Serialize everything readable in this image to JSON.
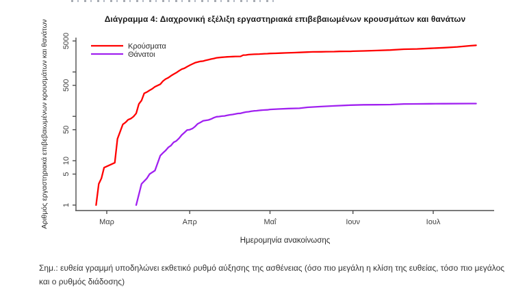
{
  "chart": {
    "title": "Διάγραμμα 4: Διαχρονική εξέλιξη εργαστηριακά επιβεβαιωμένων κρουσμάτων και θανάτων",
    "note": "Σημ.: ευθεία γραμμή υποδηλώνει εκθετικό ρυθμό αύξησης της ασθένειας (όσο πιο μεγάλη η κλίση της ευθείας, τόσο πιο μεγάλος και ο ρυθμός διάδοσης)"
  },
  "chart_data": {
    "type": "line",
    "title": "Διάγραμμα 4: Διαχρονική εξέλιξη εργαστηριακά επιβεβαιωμένων κρουσμάτων και θανάτων",
    "xlabel": "Ημερομηνία ανακοίνωσης",
    "ylabel": "Αριθμός εργαστηριακά επιβεβαιωμένων κρουσμάτων και θανάτων",
    "y_scale": "log",
    "ylim": [
      1,
      5000
    ],
    "y_axis": {
      "labeled_ticks": [
        1,
        5,
        10,
        50,
        500,
        5000
      ],
      "minor_ticks": [
        100,
        1000
      ]
    },
    "x_axis": {
      "note": "days counted from first data point (26 Feb 2020)",
      "ticks": [
        {
          "day": 4,
          "label": "Μαρ"
        },
        {
          "day": 35,
          "label": "Απρ"
        },
        {
          "day": 65,
          "label": "Μαΐ"
        },
        {
          "day": 96,
          "label": "Ιουν"
        },
        {
          "day": 126,
          "label": "Ιουλ"
        }
      ]
    },
    "legend": {
      "position": "top-left",
      "entries": [
        {
          "label": "Κρούσματα",
          "color": "#FF0000"
        },
        {
          "label": "Θάνατοι",
          "color": "#A020F0"
        }
      ]
    },
    "grid": false,
    "series": [
      {
        "name": "Κρούσματα",
        "color": "#FF0000",
        "points": [
          [
            0,
            1
          ],
          [
            1,
            3
          ],
          [
            2,
            4
          ],
          [
            3,
            7
          ],
          [
            7,
            9
          ],
          [
            8,
            31
          ],
          [
            9,
            45
          ],
          [
            10,
            66
          ],
          [
            11,
            73
          ],
          [
            12,
            84
          ],
          [
            13,
            89
          ],
          [
            14,
            99
          ],
          [
            15,
            117
          ],
          [
            16,
            190
          ],
          [
            17,
            228
          ],
          [
            18,
            331
          ],
          [
            19,
            352
          ],
          [
            20,
            387
          ],
          [
            21,
            418
          ],
          [
            22,
            464
          ],
          [
            23,
            495
          ],
          [
            24,
            530
          ],
          [
            25,
            624
          ],
          [
            26,
            695
          ],
          [
            27,
            743
          ],
          [
            28,
            821
          ],
          [
            29,
            892
          ],
          [
            30,
            966
          ],
          [
            31,
            1061
          ],
          [
            32,
            1156
          ],
          [
            33,
            1212
          ],
          [
            34,
            1314
          ],
          [
            35,
            1415
          ],
          [
            36,
            1514
          ],
          [
            37,
            1613
          ],
          [
            38,
            1673
          ],
          [
            39,
            1735
          ],
          [
            40,
            1755
          ],
          [
            41,
            1832
          ],
          [
            42,
            1884
          ],
          [
            43,
            1955
          ],
          [
            44,
            2011
          ],
          [
            45,
            2081
          ],
          [
            46,
            2114
          ],
          [
            47,
            2145
          ],
          [
            48,
            2170
          ],
          [
            49,
            2192
          ],
          [
            50,
            2207
          ],
          [
            51,
            2224
          ],
          [
            52,
            2235
          ],
          [
            54,
            2245
          ],
          [
            55,
            2401
          ],
          [
            56,
            2408
          ],
          [
            57,
            2463
          ],
          [
            58,
            2490
          ],
          [
            59,
            2506
          ],
          [
            61,
            2534
          ],
          [
            63,
            2576
          ],
          [
            64,
            2591
          ],
          [
            65,
            2612
          ],
          [
            67,
            2632
          ],
          [
            69,
            2663
          ],
          [
            71,
            2691
          ],
          [
            74,
            2726
          ],
          [
            76,
            2760
          ],
          [
            79,
            2810
          ],
          [
            81,
            2834
          ],
          [
            84,
            2850
          ],
          [
            86,
            2873
          ],
          [
            89,
            2882
          ],
          [
            91,
            2906
          ],
          [
            93,
            2915
          ],
          [
            95,
            2918
          ],
          [
            96,
            2937
          ],
          [
            100,
            2980
          ],
          [
            105,
            3049
          ],
          [
            110,
            3121
          ],
          [
            115,
            3256
          ],
          [
            120,
            3310
          ],
          [
            125,
            3409
          ],
          [
            130,
            3519
          ],
          [
            135,
            3672
          ],
          [
            140,
            3910
          ],
          [
            142,
            3983
          ]
        ]
      },
      {
        "name": "Θάνατοι",
        "color": "#A020F0",
        "points": [
          [
            15,
            1
          ],
          [
            17,
            3
          ],
          [
            19,
            4
          ],
          [
            20,
            5
          ],
          [
            22,
            6
          ],
          [
            24,
            13
          ],
          [
            25,
            15
          ],
          [
            26,
            17
          ],
          [
            27,
            20
          ],
          [
            28,
            22
          ],
          [
            29,
            26
          ],
          [
            30,
            28
          ],
          [
            31,
            32
          ],
          [
            32,
            38
          ],
          [
            33,
            43
          ],
          [
            34,
            49
          ],
          [
            35,
            50
          ],
          [
            36,
            53
          ],
          [
            37,
            59
          ],
          [
            38,
            68
          ],
          [
            39,
            73
          ],
          [
            40,
            79
          ],
          [
            41,
            81
          ],
          [
            42,
            83
          ],
          [
            43,
            87
          ],
          [
            44,
            93
          ],
          [
            45,
            98
          ],
          [
            46,
            99
          ],
          [
            47,
            101
          ],
          [
            48,
            102
          ],
          [
            49,
            105
          ],
          [
            50,
            108
          ],
          [
            51,
            110
          ],
          [
            52,
            113
          ],
          [
            53,
            116
          ],
          [
            54,
            117
          ],
          [
            55,
            121
          ],
          [
            56,
            125
          ],
          [
            57,
            127
          ],
          [
            58,
            130
          ],
          [
            59,
            133
          ],
          [
            60,
            134
          ],
          [
            61,
            136
          ],
          [
            62,
            138
          ],
          [
            63,
            139
          ],
          [
            64,
            140
          ],
          [
            65,
            143
          ],
          [
            68,
            146
          ],
          [
            72,
            150
          ],
          [
            76,
            152
          ],
          [
            79,
            160
          ],
          [
            84,
            166
          ],
          [
            89,
            172
          ],
          [
            95,
            179
          ],
          [
            100,
            182
          ],
          [
            105,
            183
          ],
          [
            110,
            184
          ],
          [
            115,
            190
          ],
          [
            120,
            191
          ],
          [
            125,
            192
          ],
          [
            130,
            193
          ],
          [
            140,
            194
          ],
          [
            142,
            194
          ]
        ]
      }
    ]
  }
}
